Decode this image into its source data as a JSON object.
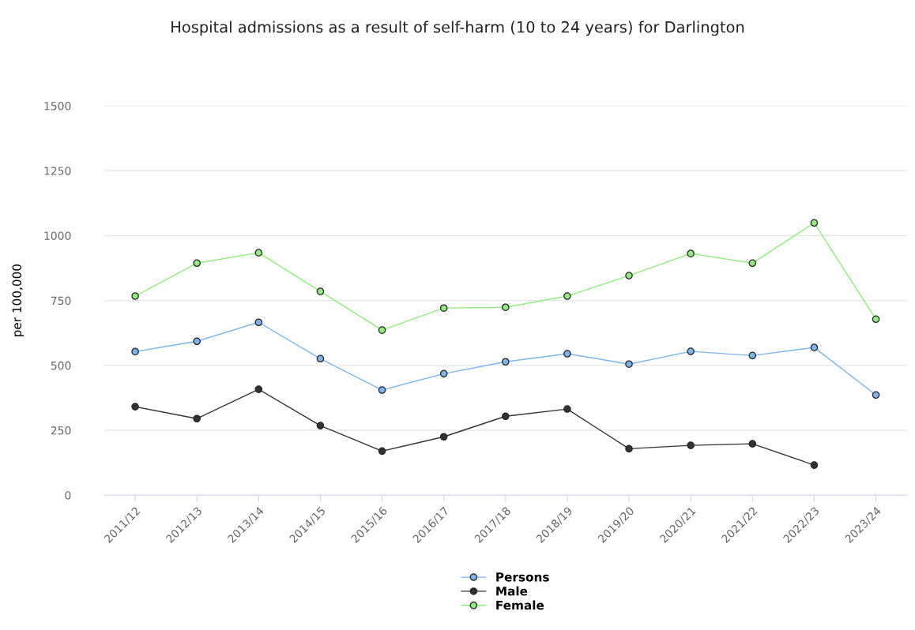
{
  "chart_data": {
    "type": "line",
    "title": "Hospital admissions as a result of self-harm (10 to 24 years) for Darlington",
    "ylabel": "per 100,000",
    "categories": [
      "2011/12",
      "2012/13",
      "2013/14",
      "2014/15",
      "2015/16",
      "2016/17",
      "2017/18",
      "2018/19",
      "2019/20",
      "2020/21",
      "2021/22",
      "2022/23",
      "2023/24"
    ],
    "series": [
      {
        "name": "Persons",
        "color": "#7cb5ec",
        "values": [
          553,
          593,
          666,
          526,
          405,
          468,
          514,
          545,
          505,
          554,
          538,
          569,
          386
        ]
      },
      {
        "name": "Male",
        "color": "#333333",
        "values": [
          341,
          295,
          408,
          268,
          170,
          225,
          304,
          332,
          179,
          192,
          198,
          116,
          null
        ]
      },
      {
        "name": "Female",
        "color": "#90ed7d",
        "values": [
          767,
          894,
          934,
          785,
          636,
          721,
          724,
          767,
          846,
          931,
          894,
          1049,
          678
        ]
      }
    ],
    "ylim": [
      0,
      1500
    ],
    "yticks": [
      0,
      250,
      500,
      750,
      1000,
      1250,
      1500
    ],
    "grid": "y",
    "legend": "bottom",
    "marker": "circle",
    "line_style": "solid"
  }
}
